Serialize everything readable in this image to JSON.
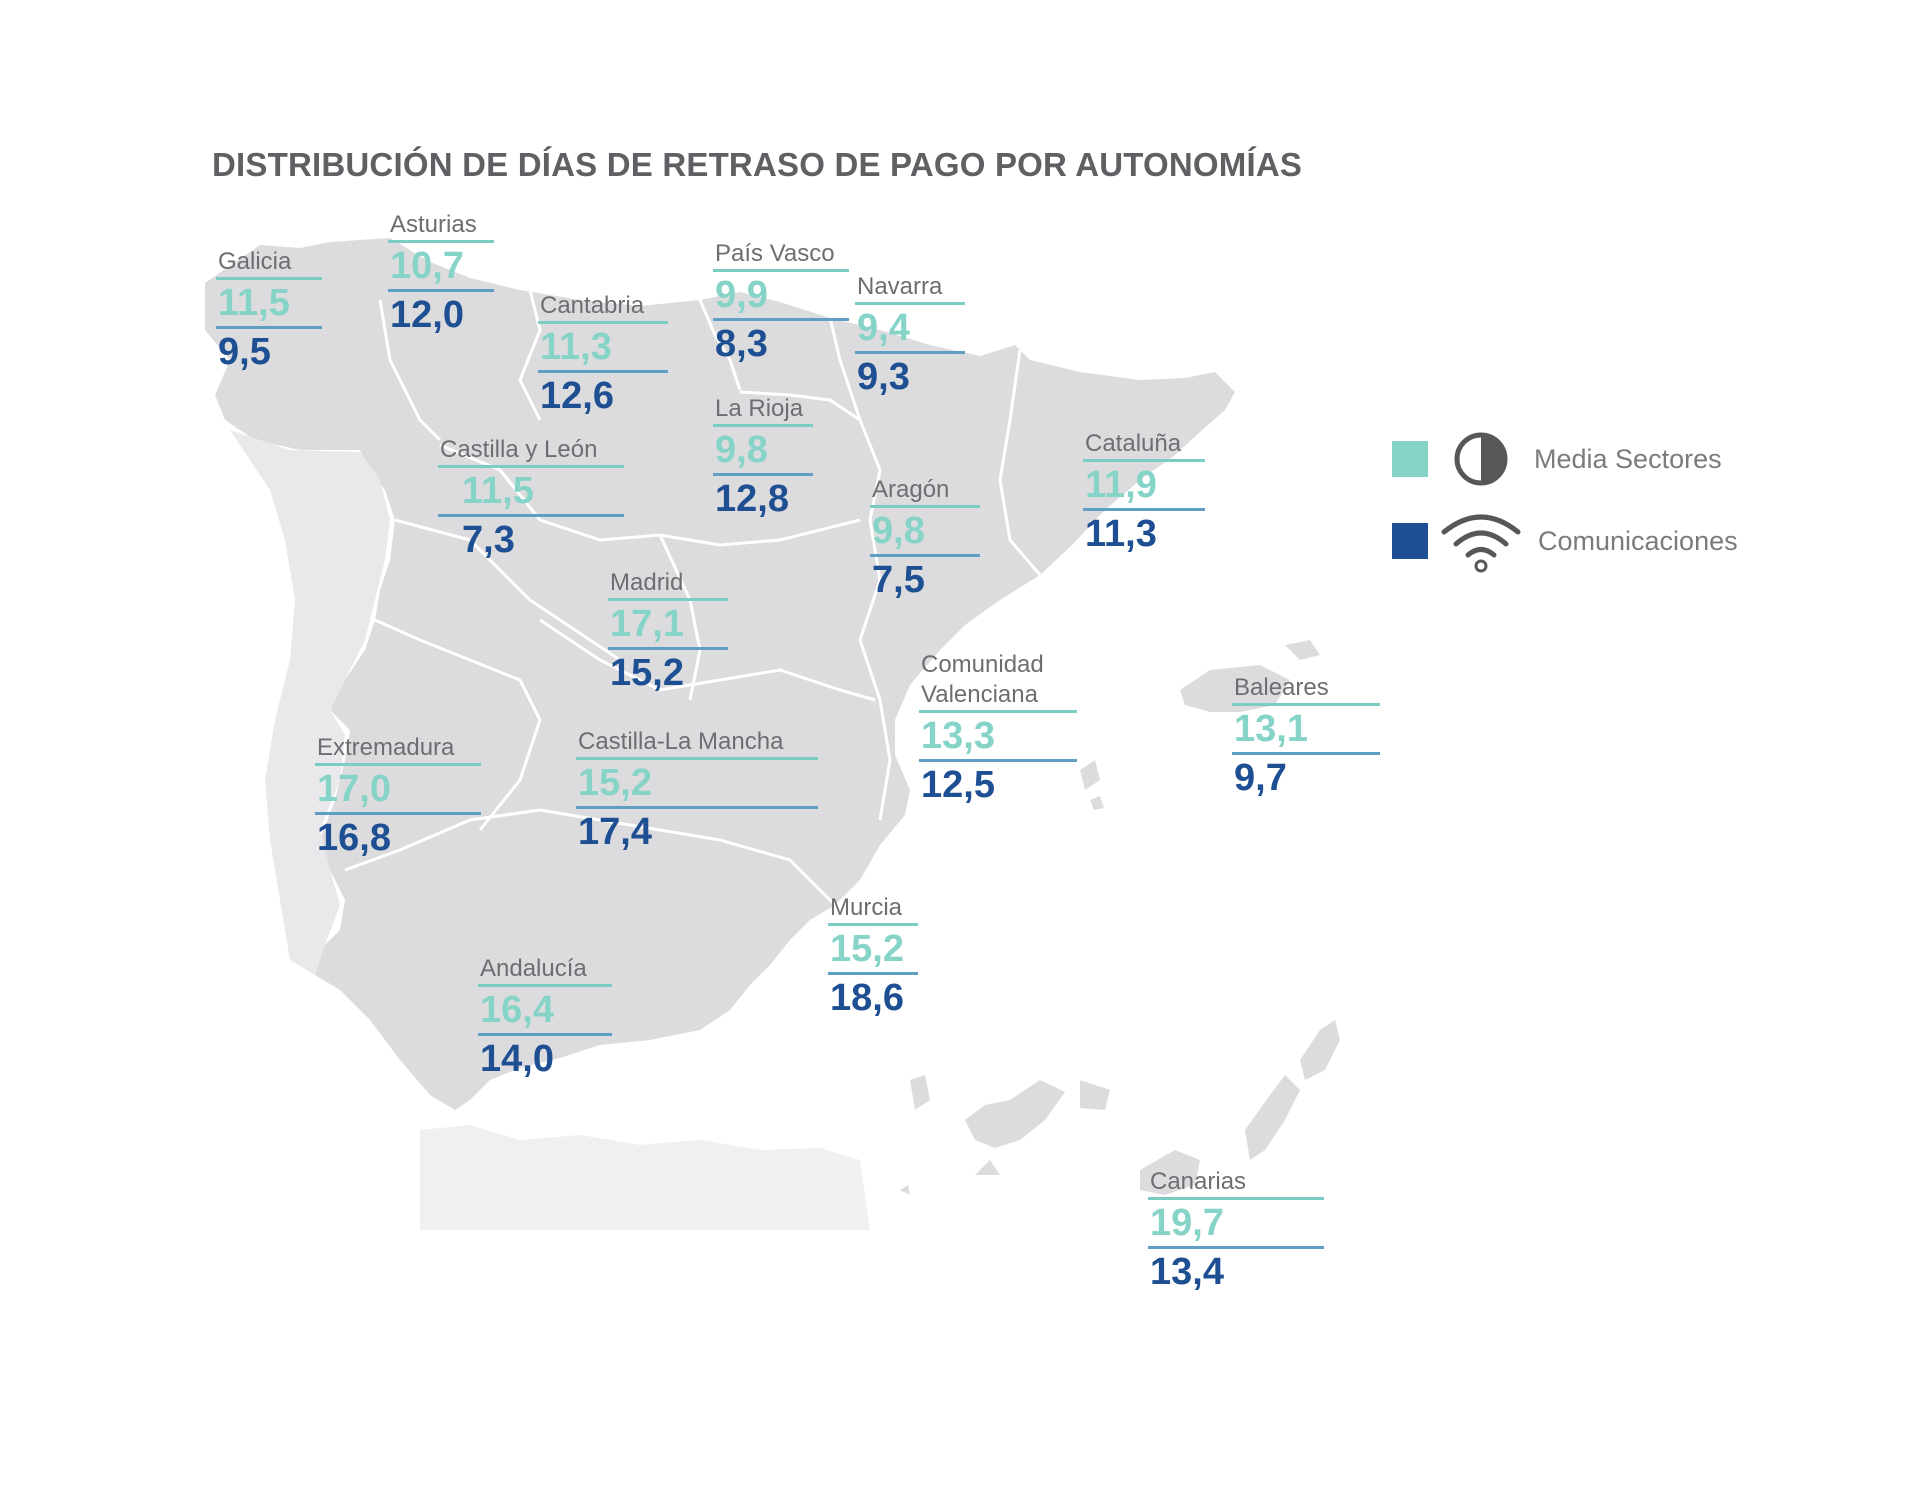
{
  "title": "DISTRIBUCIÓN DE DÍAS DE RETRASO DE PAGO POR AUTONOMÍAS",
  "colors": {
    "sectores": "#86d3c8",
    "comunicaciones": "#1d4f92",
    "land": "#dcdcde",
    "border": "#ffffff"
  },
  "legend": {
    "items": [
      {
        "label": "Media Sectores",
        "icon": "half-circle-icon"
      },
      {
        "label": "Comunicaciones",
        "icon": "wifi-icon"
      }
    ]
  },
  "regions": [
    {
      "name": "Galicia",
      "sectores": "11,5",
      "comunicaciones": "9,5"
    },
    {
      "name": "Asturias",
      "sectores": "10,7",
      "comunicaciones": "12,0"
    },
    {
      "name": "Cantabria",
      "sectores": "11,3",
      "comunicaciones": "12,6"
    },
    {
      "name": "País Vasco",
      "sectores": "9,9",
      "comunicaciones": "8,3"
    },
    {
      "name": "Navarra",
      "sectores": "9,4",
      "comunicaciones": "9,3"
    },
    {
      "name": "La Rioja",
      "sectores": "9,8",
      "comunicaciones": "12,8"
    },
    {
      "name": "Castilla y León",
      "sectores": "11,5",
      "comunicaciones": "7,3"
    },
    {
      "name": "Aragón",
      "sectores": "9,8",
      "comunicaciones": "7,5"
    },
    {
      "name": "Cataluña",
      "sectores": "11,9",
      "comunicaciones": "11,3"
    },
    {
      "name": "Madrid",
      "sectores": "17,1",
      "comunicaciones": "15,2"
    },
    {
      "name": "Comunidad\nValenciana",
      "sectores": "13,3",
      "comunicaciones": "12,5"
    },
    {
      "name": "Baleares",
      "sectores": "13,1",
      "comunicaciones": "9,7"
    },
    {
      "name": "Extremadura",
      "sectores": "17,0",
      "comunicaciones": "16,8"
    },
    {
      "name": "Castilla-La Mancha",
      "sectores": "15,2",
      "comunicaciones": "17,4"
    },
    {
      "name": "Murcia",
      "sectores": "15,2",
      "comunicaciones": "18,6"
    },
    {
      "name": "Andalucía",
      "sectores": "16,4",
      "comunicaciones": "14,0"
    },
    {
      "name": "Canarias",
      "sectores": "19,7",
      "comunicaciones": "13,4"
    }
  ]
}
